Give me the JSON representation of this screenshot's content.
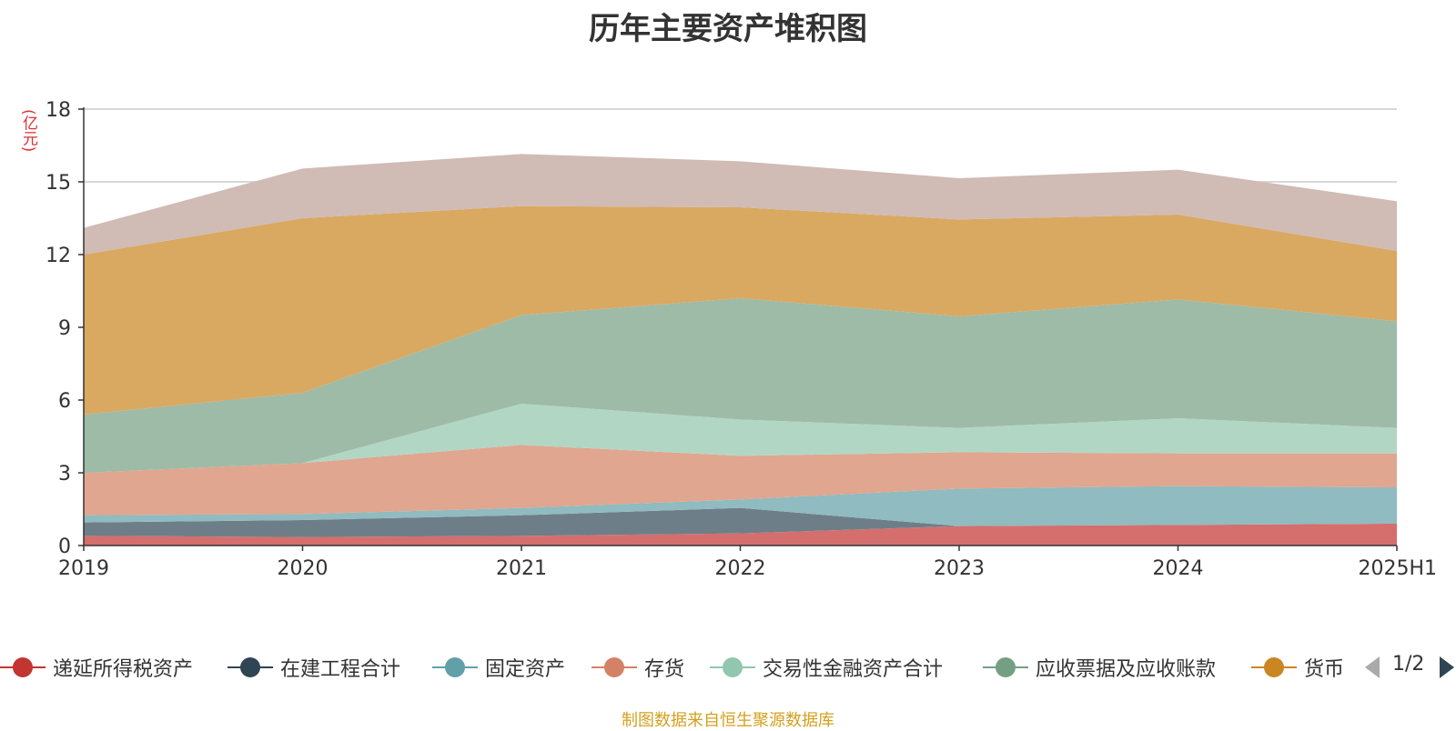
{
  "chart_data": {
    "type": "area",
    "stacked": true,
    "title": "历年主要资产堆积图",
    "ylabel": "(亿元)",
    "xlabel": "",
    "categories": [
      "2019",
      "2020",
      "2021",
      "2022",
      "2023",
      "2024",
      "2025H1"
    ],
    "ylim": [
      0,
      18
    ],
    "yticks": [
      0,
      3,
      6,
      9,
      12,
      15,
      18
    ],
    "grid": true,
    "legend_position": "bottom",
    "series": [
      {
        "name": "递延所得税资产",
        "color": "#c23531",
        "fill": "#d46f6d",
        "values": [
          0.4,
          0.35,
          0.4,
          0.5,
          0.8,
          0.85,
          0.9
        ]
      },
      {
        "name": "在建工程合计",
        "color": "#2f4554",
        "fill": "#6e7e88",
        "values": [
          0.55,
          0.7,
          0.85,
          1.05,
          0.0,
          0.0,
          0.0
        ]
      },
      {
        "name": "固定资产",
        "color": "#61a0a8",
        "fill": "#90bbc0",
        "values": [
          0.3,
          0.25,
          0.3,
          0.35,
          1.55,
          1.6,
          1.5
        ]
      },
      {
        "name": "存货",
        "color": "#d48265",
        "fill": "#e0a68f",
        "values": [
          1.75,
          2.1,
          2.6,
          1.8,
          1.5,
          1.35,
          1.4
        ]
      },
      {
        "name": "交易性金融资产合计",
        "color": "#91c7ae",
        "fill": "#b2d6c4",
        "values": [
          0.0,
          0.0,
          1.7,
          1.5,
          1.0,
          1.45,
          1.05
        ]
      },
      {
        "name": "应收票据及应收账款",
        "color": "#749f83",
        "fill": "#9ebba7",
        "values": [
          2.4,
          2.9,
          3.65,
          5.0,
          4.6,
          4.9,
          4.4
        ]
      },
      {
        "name": "货币",
        "color": "#ca8622",
        "fill": "#d9a962",
        "values": [
          6.6,
          7.2,
          4.5,
          3.75,
          4.0,
          3.5,
          2.9
        ]
      },
      {
        "name": "",
        "color": "#bda29a",
        "fill": "#d0bbb5",
        "values": [
          1.1,
          2.05,
          2.15,
          1.9,
          1.7,
          1.85,
          2.05
        ]
      }
    ]
  },
  "legend": {
    "page_text": "1/2",
    "prev_icon": "triangle-left-icon",
    "next_icon": "triangle-right-icon"
  },
  "source_note": "制图数据来自恒生聚源数据库"
}
